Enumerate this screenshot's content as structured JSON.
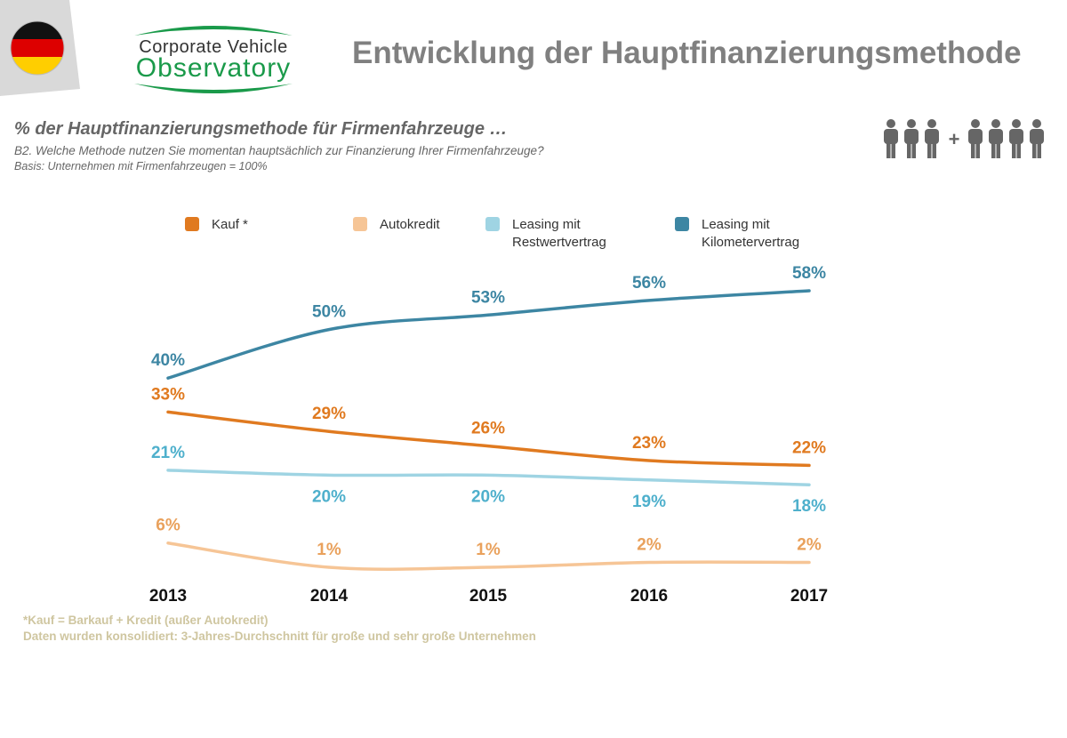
{
  "header": {
    "logo_line1": "Corporate Vehicle",
    "logo_line2": "Observatory",
    "title": "Entwicklung der Hauptfinanzierungsmethode",
    "flag": "germany-flag"
  },
  "intro": {
    "subtitle": "% der Hauptfinanzierungsmethode für Firmenfahrzeuge …",
    "question": "B2. Welche Methode nutzen Sie momentan hauptsächlich zur Finanzierung Ihrer Firmenfahrzeuge?",
    "basis": "Basis: Unternehmen mit Firmenfahrzeugen = 100%"
  },
  "people_icon": {
    "name": "people-group-icon",
    "plus": "+"
  },
  "chart_data": {
    "type": "line",
    "title": "",
    "xlabel": "",
    "ylabel": "",
    "ylim": [
      0,
      60
    ],
    "grid": false,
    "legend_position": "top",
    "x": [
      "2013",
      "2014",
      "2015",
      "2016",
      "2017"
    ],
    "series": [
      {
        "name": "Kauf *",
        "label_lines": [
          "Kauf *"
        ],
        "color": "#e07a20",
        "label_color": "#e07a20",
        "values": [
          33,
          29,
          26,
          23,
          22
        ],
        "labels": [
          "33%",
          "29%",
          "26%",
          "23%",
          "22%"
        ],
        "label_side": "above"
      },
      {
        "name": "Autokredit",
        "label_lines": [
          "Autokredit"
        ],
        "color": "#f6c596",
        "label_color": "#e9a15c",
        "values": [
          6,
          1,
          1,
          2,
          2
        ],
        "labels": [
          "6%",
          "1%",
          "1%",
          "2%",
          "2%"
        ],
        "label_side": "above"
      },
      {
        "name": "Leasing mit Restwertvertrag",
        "label_lines": [
          "Leasing mit",
          "Restwertvertrag"
        ],
        "color": "#9fd4e3",
        "label_color": "#4fb0cc",
        "values": [
          21,
          20,
          20,
          19,
          18
        ],
        "labels": [
          "21%",
          "20%",
          "20%",
          "19%",
          "18%"
        ],
        "label_side": "mixed"
      },
      {
        "name": "Leasing mit Kilometervertrag",
        "label_lines": [
          "Leasing mit",
          "Kilometervertrag"
        ],
        "color": "#3d86a3",
        "label_color": "#3d86a3",
        "values": [
          40,
          50,
          53,
          56,
          58
        ],
        "labels": [
          "40%",
          "50%",
          "53%",
          "56%",
          "58%"
        ],
        "label_side": "above"
      }
    ]
  },
  "footnotes": {
    "line1": "*Kauf = Barkauf + Kredit (außer Autokredit)",
    "line2": "Daten wurden konsolidiert: 3-Jahres-Durchschnitt für große und sehr große Unternehmen"
  }
}
